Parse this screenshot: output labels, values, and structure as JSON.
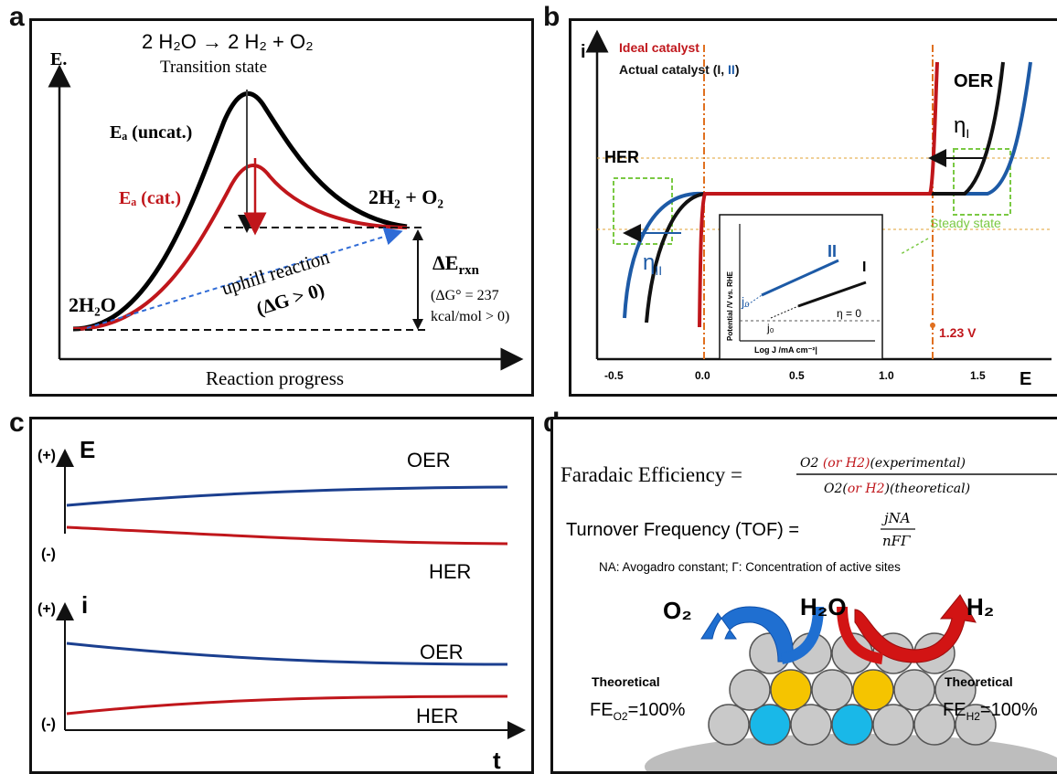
{
  "panels": {
    "a": {
      "label": "a",
      "reaction": "2 H₂O → 2 H₂ + O₂",
      "transition_state": "Transition state",
      "y_axis": "E.",
      "ea_uncat": "Eₐ (uncat.)",
      "ea_cat": "Eₐ (cat.)",
      "products": "2H₂ + O₂",
      "reactant": "2H₂O",
      "uphill": "uphill reaction",
      "dg": "(ΔG > 0)",
      "delta_e": "ΔE",
      "delta_e_sub": "rxn",
      "dg0_line1": "(ΔG° = 237",
      "dg0_line2": "kcal/mol > 0)",
      "x_axis": "Reaction progress",
      "colors": {
        "uncat": "#000000",
        "cat": "#c0161b",
        "arrow": "#2f6bd6"
      }
    },
    "b": {
      "label": "b",
      "y_axis": "i",
      "x_axis": "E",
      "ideal": "Ideal catalyst",
      "actual_prefix": "Actual catalyst (I, ",
      "actual_ii": "II",
      "actual_suffix": ")",
      "oer": "OER",
      "her": "HER",
      "eta_i": "ηI",
      "eta_ii": "ηII",
      "steady": "Steady state",
      "v123": "1.23 V",
      "ticks": [
        "-0.5",
        "0.0",
        "0.5",
        "1.0",
        "1.5"
      ],
      "inset": {
        "y_label": "Potential /V vs. RHE",
        "x_label": "Log J /mA cm⁻²|",
        "ii": "II",
        "i": "I",
        "eta0": "η = 0",
        "j0": "j₀",
        "j0b": "j₀"
      },
      "colors": {
        "ideal": "#c0161b",
        "actual_i": "#111111",
        "actual_ii": "#1d5aa6",
        "steady": "#7ac943",
        "ref": "#e07020"
      }
    },
    "c": {
      "label": "c",
      "top_axis": "E",
      "bottom_axis": "i",
      "plus": "(+)",
      "minus": "(-)",
      "oer": "OER",
      "her": "HER",
      "t": "t",
      "colors": {
        "oer": "#1b3f8f",
        "her": "#c0161b"
      }
    },
    "d": {
      "label": "d",
      "fe_lhs": "Faradaic Efficiency = ",
      "fe_num_a": "O2 ",
      "fe_num_b": "(or H2)",
      "fe_num_c": "(experimental)",
      "fe_den_a": "O2(",
      "fe_den_b": "or H2",
      "fe_den_c": ")(theoretical)",
      "tof_lhs": "Turnover Frequency (TOF) = ",
      "tof_num": "jNA",
      "tof_den": "nFΓ",
      "note": "NA: Avogadro constant;  Γ: Concentration of active sites",
      "o2": "O₂",
      "h2o": "H₂O",
      "h2": "H₂",
      "theo_left": "Theoretical",
      "fe_o2": "FEO2=100%",
      "theo_right": "Theoretical",
      "fe_h2": "FEH2=100%",
      "colors": {
        "blue": "#1f6fd1",
        "red": "#d21414",
        "gold": "#f5c400",
        "cyan": "#19b8e8",
        "grey": "#bdbdbd"
      }
    }
  }
}
